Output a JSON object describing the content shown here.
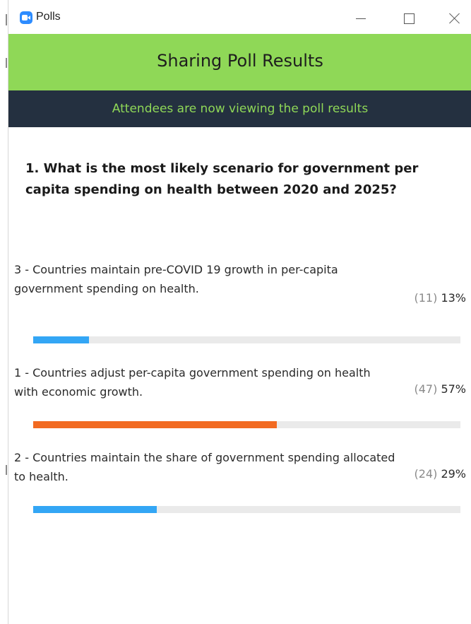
{
  "window": {
    "title": "Polls"
  },
  "header": {
    "title": "Sharing Poll Results"
  },
  "banner": {
    "text": "Attendees are now viewing the poll results"
  },
  "question": {
    "text": "1. What is the most likely scenario for government per capita spending on health between 2020 and 2025?"
  },
  "options": [
    {
      "text": "3 - Countries maintain pre-COVID 19 growth in per-capita government spending on health.",
      "count": "(11)",
      "percent": "13%",
      "fraction": 0.13,
      "color": "#33a6f5"
    },
    {
      "text": "1 - Countries adjust per-capita government spending on health with economic growth.",
      "count": "(47)",
      "percent": "57%",
      "fraction": 0.57,
      "color": "#f26a21"
    },
    {
      "text": "2 - Countries maintain the share of government spending allocated to health.",
      "count": "(24)",
      "percent": "29%",
      "fraction": 0.29,
      "color": "#33a6f5"
    }
  ],
  "colors": {
    "header_green": "#8fd857",
    "banner_dark": "#243040",
    "banner_text": "#8fd857"
  },
  "icons": {
    "app": "zoom-camera-icon",
    "minimize": "minimize-icon",
    "maximize": "maximize-icon",
    "close": "close-icon"
  }
}
